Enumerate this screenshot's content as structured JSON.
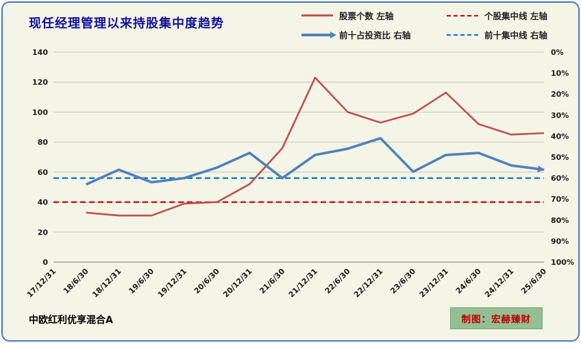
{
  "title": "现任经理管理以来持股集中度趋势",
  "legend": [
    {
      "label": "股票个数 左轴",
      "style": "solid",
      "color": "#c0504d"
    },
    {
      "label": "个股集中线 左轴",
      "style": "dashed",
      "color": "#cc0000"
    },
    {
      "label": "前十占投资比 右轴",
      "style": "arrow",
      "color": "#4f81bd"
    },
    {
      "label": "前十集中线 右轴",
      "style": "dashed",
      "color": "#0070c0"
    }
  ],
  "footer": {
    "fund_name": "中欧红利优享混合A",
    "credit": "制图：宏赫臻财"
  },
  "colors": {
    "card_background": "#f5f5e7",
    "card_border": "#4577be",
    "title_text": "#12129a",
    "gridline": "#c4c4ba",
    "axis_line": "#8c8c84",
    "credit_background": "#94bf92",
    "credit_text": "#c00000"
  },
  "chart_data": {
    "type": "line",
    "title": "现任经理管理以来持股集中度趋势",
    "categories": [
      "17/12/31",
      "18/6/30",
      "18/12/31",
      "19/6/30",
      "19/12/31",
      "20/6/30",
      "20/12/31",
      "21/6/30",
      "21/12/31",
      "22/6/30",
      "22/12/31",
      "23/6/30",
      "23/12/31",
      "24/6/30",
      "24/12/31",
      "25/6/30"
    ],
    "left_axis": {
      "min": 0,
      "max": 140,
      "ticks": [
        0,
        20,
        40,
        60,
        80,
        100,
        120,
        140
      ]
    },
    "right_axis": {
      "min": 0,
      "max": 100,
      "inverted": true,
      "ticks": [
        "0%",
        "10%",
        "20%",
        "30%",
        "40%",
        "50%",
        "60%",
        "70%",
        "80%",
        "90%",
        "100%"
      ]
    },
    "grid": true,
    "legend_position": "top",
    "series": [
      {
        "name": "股票个数",
        "axis": "left",
        "color": "#c0504d",
        "width": 2.6,
        "values": [
          null,
          33,
          31,
          31,
          39,
          40,
          52,
          76,
          123,
          100,
          93,
          99,
          113,
          92,
          85,
          86
        ]
      },
      {
        "name": "个股集中线",
        "axis": "left",
        "color": "#cc0000",
        "width": 2.2,
        "dash": "8 5",
        "values": [
          40,
          40,
          40,
          40,
          40,
          40,
          40,
          40,
          40,
          40,
          40,
          40,
          40,
          40,
          40,
          40
        ]
      },
      {
        "name": "前十占投资比",
        "axis": "right",
        "color": "#4f81bd",
        "width": 3.6,
        "arrow": true,
        "values": [
          null,
          63,
          56,
          62,
          60,
          55,
          48,
          60,
          49,
          46,
          41,
          57,
          49,
          48,
          54,
          56
        ]
      },
      {
        "name": "前十集中线",
        "axis": "right",
        "color": "#0070c0",
        "width": 2.2,
        "dash": "8 5",
        "values": [
          60,
          60,
          60,
          60,
          60,
          60,
          60,
          60,
          60,
          60,
          60,
          60,
          60,
          60,
          60,
          60
        ]
      }
    ]
  }
}
